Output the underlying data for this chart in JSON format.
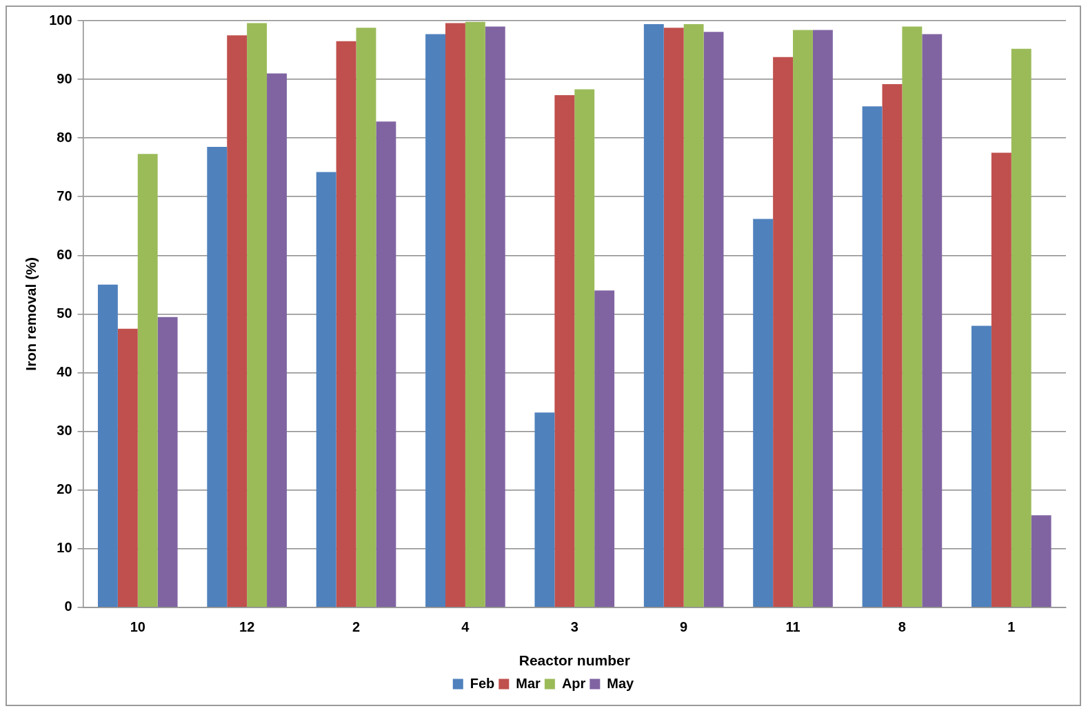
{
  "chart_data": {
    "type": "bar",
    "xlabel": "Reactor number",
    "ylabel": "Iron removal (%)",
    "categories": [
      "10",
      "12",
      "2",
      "4",
      "3",
      "9",
      "11",
      "8",
      "1"
    ],
    "series": [
      {
        "name": "Feb",
        "color": "#4f81bd",
        "values": [
          55,
          78.5,
          74.2,
          97.7,
          33.2,
          99.4,
          66.2,
          85.4,
          48
        ]
      },
      {
        "name": "Mar",
        "color": "#c0504d",
        "values": [
          47.5,
          97.5,
          96.5,
          99.6,
          87.3,
          98.8,
          93.8,
          89.2,
          77.5
        ]
      },
      {
        "name": "Apr",
        "color": "#9bbb59",
        "values": [
          77.3,
          99.6,
          98.8,
          99.8,
          88.3,
          99.4,
          98.4,
          99,
          95.2
        ]
      },
      {
        "name": "May",
        "color": "#8064a2",
        "values": [
          49.5,
          91,
          82.8,
          99,
          54,
          98.1,
          98.4,
          97.7,
          15.7
        ]
      }
    ],
    "ylim": [
      0,
      100
    ],
    "yticks": [
      0,
      10,
      20,
      30,
      40,
      50,
      60,
      70,
      80,
      90,
      100
    ],
    "grid": "y",
    "legend": "bottom"
  }
}
